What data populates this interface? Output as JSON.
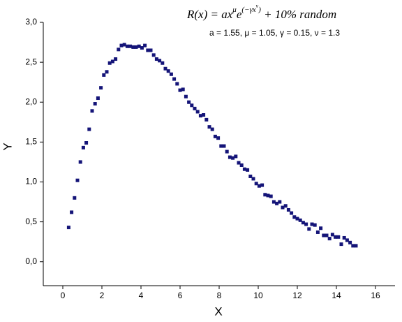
{
  "chart_data": {
    "type": "scatter",
    "x_label": "X",
    "y_label": "Y",
    "formula": [
      {
        "text": "R(x) = ax",
        "level": 0
      },
      {
        "text": "μ",
        "level": 1
      },
      {
        "text": "e",
        "level": 0
      },
      {
        "text": "(−γx",
        "level": 1
      },
      {
        "text": "ν",
        "level": 2
      },
      {
        "text": ")",
        "level": 1
      },
      {
        "text": " + 10% random",
        "level": 0
      }
    ],
    "parameters": "a = 1.55, μ = 1.05, γ = 0.15, ν = 1.3",
    "color": "#141478",
    "x": [
      0.3,
      0.45,
      0.6,
      0.75,
      0.9,
      1.05,
      1.2,
      1.35,
      1.5,
      1.65,
      1.8,
      1.95,
      2.1,
      2.25,
      2.4,
      2.55,
      2.7,
      2.85,
      3.0,
      3.15,
      3.3,
      3.45,
      3.6,
      3.75,
      3.9,
      4.05,
      4.2,
      4.35,
      4.5,
      4.65,
      4.8,
      4.95,
      5.1,
      5.25,
      5.4,
      5.55,
      5.7,
      5.85,
      6.0,
      6.15,
      6.3,
      6.45,
      6.6,
      6.75,
      6.9,
      7.05,
      7.2,
      7.35,
      7.5,
      7.65,
      7.8,
      7.95,
      8.1,
      8.25,
      8.4,
      8.55,
      8.7,
      8.85,
      9.0,
      9.15,
      9.3,
      9.45,
      9.6,
      9.75,
      9.9,
      10.05,
      10.2,
      10.35,
      10.5,
      10.65,
      10.8,
      10.95,
      11.1,
      11.25,
      11.4,
      11.55,
      11.7,
      11.85,
      12.0,
      12.15,
      12.3,
      12.45,
      12.6,
      12.75,
      12.9,
      13.05,
      13.2,
      13.35,
      13.5,
      13.65,
      13.8,
      13.95,
      14.1,
      14.25,
      14.4,
      14.55,
      14.7,
      14.85,
      15.0
    ],
    "values": [
      0.43,
      0.62,
      0.8,
      1.02,
      1.25,
      1.43,
      1.49,
      1.66,
      1.89,
      1.98,
      2.05,
      2.18,
      2.34,
      2.38,
      2.49,
      2.51,
      2.54,
      2.66,
      2.71,
      2.72,
      2.7,
      2.7,
      2.69,
      2.69,
      2.7,
      2.68,
      2.71,
      2.65,
      2.65,
      2.59,
      2.54,
      2.52,
      2.49,
      2.42,
      2.39,
      2.35,
      2.29,
      2.23,
      2.15,
      2.16,
      2.07,
      2.0,
      1.96,
      1.92,
      1.88,
      1.83,
      1.84,
      1.78,
      1.69,
      1.66,
      1.57,
      1.55,
      1.45,
      1.45,
      1.38,
      1.31,
      1.3,
      1.32,
      1.24,
      1.21,
      1.16,
      1.15,
      1.07,
      1.04,
      0.98,
      0.95,
      0.96,
      0.84,
      0.83,
      0.82,
      0.75,
      0.73,
      0.75,
      0.68,
      0.7,
      0.65,
      0.61,
      0.56,
      0.54,
      0.52,
      0.49,
      0.47,
      0.41,
      0.47,
      0.46,
      0.37,
      0.42,
      0.33,
      0.33,
      0.29,
      0.34,
      0.31,
      0.31,
      0.22,
      0.3,
      0.27,
      0.24,
      0.2,
      0.2
    ],
    "xlim": [
      -1,
      17
    ],
    "xticks": [
      0,
      2,
      4,
      6,
      8,
      10,
      12,
      14,
      16
    ],
    "ylim": [
      -0.3,
      3.0
    ],
    "yticks": [
      {
        "value": 0,
        "label": "0,0"
      },
      {
        "value": 0.5,
        "label": "0,5"
      },
      {
        "value": 1,
        "label": "1,0"
      },
      {
        "value": 1.5,
        "label": "1,5"
      },
      {
        "value": 2,
        "label": "2,0"
      },
      {
        "value": 2.5,
        "label": "2,5"
      },
      {
        "value": 3,
        "label": "3,0"
      }
    ]
  }
}
